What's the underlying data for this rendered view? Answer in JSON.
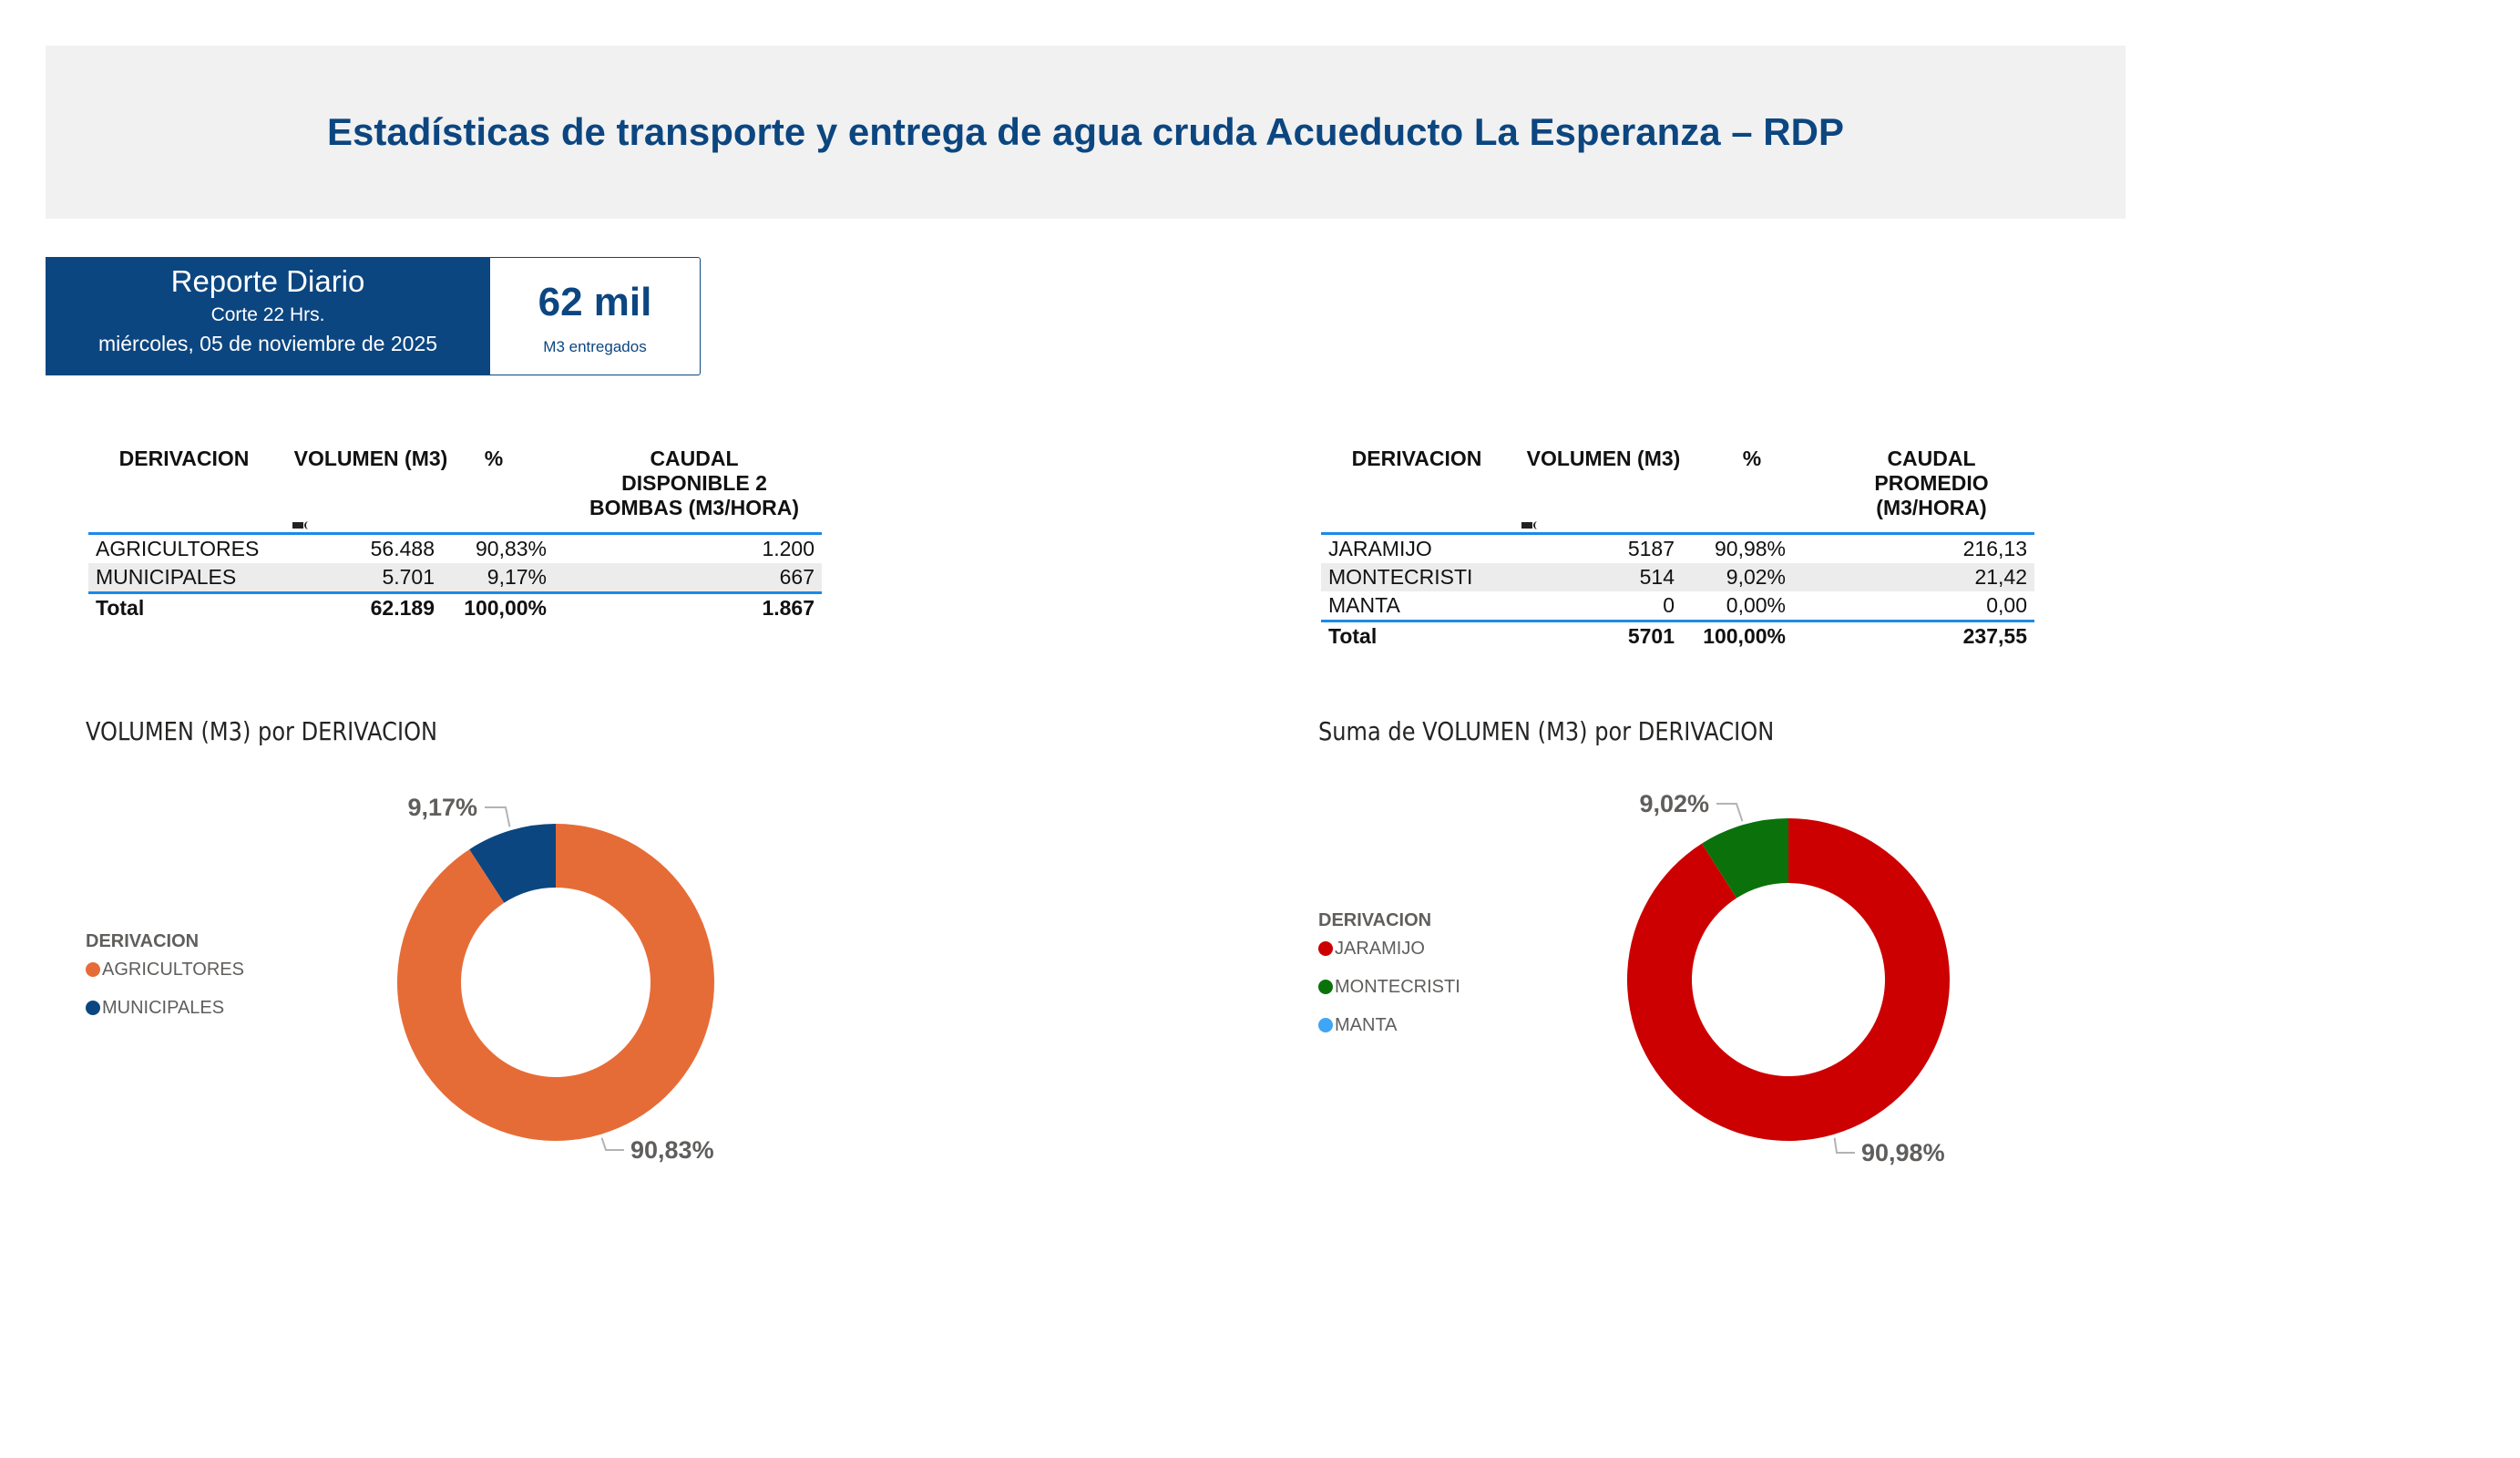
{
  "banner": {
    "title": "Estadísticas de transporte y entrega de agua cruda Acueducto La Esperanza – RDP"
  },
  "report_card": {
    "title": "Reporte Diario",
    "cut": "Corte 22 Hrs.",
    "date": "miércoles, 05 de noviembre de 2025",
    "kpi_value": "62 mil",
    "kpi_label": "M3 entregados"
  },
  "colors": {
    "brand_navy": "#0c4680",
    "banner_bg": "#f1f1f1",
    "table_rule": "#1a8ae8",
    "agricultores": "#e66c37",
    "municipales": "#0c4680",
    "jaramijo": "#cc0000",
    "montecristi": "#0b720b",
    "manta": "#3fa5f5"
  },
  "table_left": {
    "headers": [
      "DERIVACION",
      "VOLUMEN (M3)",
      "%",
      "CAUDAL DISPONIBLE 2 BOMBAS (M3/HORA)"
    ],
    "header_lines": {
      "caudal": [
        "CAUDAL",
        "DISPONIBLE 2",
        "BOMBAS (M3/HORA)"
      ]
    },
    "sort_icon": "sort-descending-icon",
    "rows": [
      {
        "derivacion": "AGRICULTORES",
        "volumen": "56.488",
        "pct": "90,83%",
        "caudal": "1.200"
      },
      {
        "derivacion": "MUNICIPALES",
        "volumen": "5.701",
        "pct": "9,17%",
        "caudal": "667"
      }
    ],
    "total": {
      "label": "Total",
      "volumen": "62.189",
      "pct": "100,00%",
      "caudal": "1.867"
    }
  },
  "table_right": {
    "headers": [
      "DERIVACION",
      "VOLUMEN (M3)",
      "%",
      "CAUDAL PROMEDIO (M3/HORA)"
    ],
    "header_lines": {
      "caudal": [
        "CAUDAL",
        "PROMEDIO",
        "(M3/HORA)"
      ]
    },
    "sort_icon": "sort-descending-icon",
    "rows": [
      {
        "derivacion": "JARAMIJO",
        "volumen": "5187",
        "pct": "90,98%",
        "caudal": "216,13"
      },
      {
        "derivacion": "MONTECRISTI",
        "volumen": "514",
        "pct": "9,02%",
        "caudal": "21,42"
      },
      {
        "derivacion": "MANTA",
        "volumen": "0",
        "pct": "0,00%",
        "caudal": "0,00"
      }
    ],
    "total": {
      "label": "Total",
      "volumen": "5701",
      "pct": "100,00%",
      "caudal": "237,55"
    }
  },
  "chart_data": [
    {
      "type": "pie",
      "variant": "donut",
      "title": "VOLUMEN (M3) por DERIVACION",
      "legend_title": "DERIVACION",
      "legend_position": "left",
      "categories": [
        "AGRICULTORES",
        "MUNICIPALES"
      ],
      "values": [
        56488,
        5701
      ],
      "percent_labels": [
        "90,83%",
        "9,17%"
      ],
      "colors": [
        "#e66c37",
        "#0c4680"
      ]
    },
    {
      "type": "pie",
      "variant": "donut",
      "title": "Suma de VOLUMEN (M3) por DERIVACION",
      "legend_title": "DERIVACION",
      "legend_position": "left",
      "categories": [
        "JARAMIJO",
        "MONTECRISTI",
        "MANTA"
      ],
      "values": [
        5187,
        514,
        0
      ],
      "percent_labels": [
        "90,98%",
        "9,02%",
        "0,00%"
      ],
      "colors": [
        "#cc0000",
        "#0b720b",
        "#3fa5f5"
      ]
    }
  ]
}
